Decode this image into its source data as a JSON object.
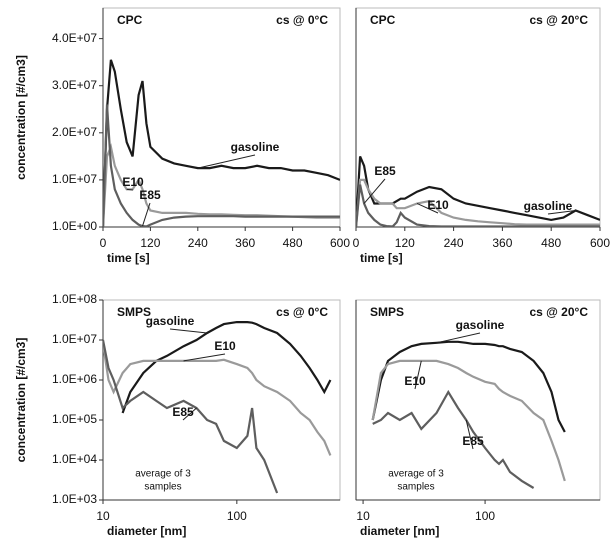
{
  "chart_data": [
    {
      "type": "line",
      "title": "CPC",
      "subtitle": "cs @ 0°C",
      "x_label": "time [s]",
      "y_label": "concentration [#/cm3]",
      "x": [
        0,
        10,
        20,
        30,
        45,
        60,
        75,
        90,
        100,
        110,
        120,
        150,
        180,
        210,
        240,
        270,
        300,
        330,
        360,
        390,
        420,
        450,
        480,
        510,
        540,
        570,
        600
      ],
      "xlim": [
        0,
        600
      ],
      "xticks": [
        0,
        120,
        240,
        360,
        480,
        600
      ],
      "ylim": [
        0,
        46500000
      ],
      "yticks": [
        {
          "value": 1,
          "label": "1.0E+00"
        },
        {
          "value": 10000000,
          "label": "1.0E+07"
        },
        {
          "value": 20000000,
          "label": "2.0E+07"
        },
        {
          "value": 30000000,
          "label": "3.0E+07"
        },
        {
          "value": 40000000,
          "label": "4.0E+07"
        }
      ],
      "series": [
        {
          "name": "gasoline",
          "color": "#1a1a1a",
          "values": [
            0,
            25000000,
            35500000,
            33000000,
            25000000,
            18000000,
            15000000,
            28000000,
            31000000,
            22000000,
            17000000,
            14500000,
            13500000,
            13000000,
            12500000,
            12500000,
            13000000,
            12500000,
            12500000,
            13000000,
            12500000,
            12500000,
            12000000,
            12000000,
            11500000,
            11000000,
            10000000
          ]
        },
        {
          "name": "E10",
          "color": "#9a9a9a",
          "values": [
            0,
            15000000,
            17000000,
            13000000,
            10000000,
            8000000,
            8000000,
            10000000,
            8000000,
            5000000,
            3500000,
            3000000,
            3000000,
            3000000,
            2800000,
            2700000,
            2700000,
            2600000,
            2500000,
            2500000,
            2400000,
            2300000,
            2200000,
            2100000,
            2000000,
            2000000,
            2000000
          ]
        },
        {
          "name": "E85",
          "color": "#5e5e5e",
          "values": [
            0,
            26000000,
            13000000,
            8000000,
            5000000,
            3000000,
            1500000,
            500000,
            200000,
            100000,
            500000,
            1500000,
            2000000,
            2200000,
            2300000,
            2300000,
            2300000,
            2300000,
            2200000,
            2200000,
            2200000,
            2200000,
            2200000,
            2200000,
            2200000,
            2200000,
            2200000
          ]
        }
      ]
    },
    {
      "type": "line",
      "title": "CPC",
      "subtitle": "cs @ 20°C",
      "x_label": "time [s]",
      "x": [
        0,
        10,
        20,
        30,
        45,
        60,
        75,
        90,
        100,
        110,
        120,
        150,
        180,
        210,
        240,
        270,
        300,
        330,
        360,
        390,
        420,
        450,
        480,
        510,
        540,
        570,
        600
      ],
      "xlim": [
        0,
        600
      ],
      "xticks": [
        0,
        120,
        240,
        360,
        480,
        600
      ],
      "ylim": [
        0,
        46500000
      ],
      "series": [
        {
          "name": "gasoline",
          "color": "#1a1a1a",
          "values": [
            0,
            15000000,
            13000000,
            8000000,
            5000000,
            5000000,
            5000000,
            5000000,
            5500000,
            6000000,
            6000000,
            7500000,
            8500000,
            8000000,
            6000000,
            5000000,
            4500000,
            4000000,
            3500000,
            3000000,
            2500000,
            2000000,
            1500000,
            2000000,
            3500000,
            2500000,
            1500000
          ]
        },
        {
          "name": "E10",
          "color": "#9a9a9a",
          "values": [
            0,
            10000000,
            10000000,
            8000000,
            6000000,
            5000000,
            5000000,
            5000000,
            4000000,
            4000000,
            4000000,
            5000000,
            5500000,
            3000000,
            2000000,
            1500000,
            1200000,
            1000000,
            800000,
            600000,
            500000,
            500000,
            500000,
            500000,
            500000,
            500000,
            500000
          ]
        },
        {
          "name": "E85",
          "color": "#5e5e5e",
          "values": [
            0,
            9000000,
            5000000,
            3000000,
            1500000,
            500000,
            200000,
            100000,
            1000000,
            3000000,
            2000000,
            500000,
            200000,
            100000,
            100000,
            100000,
            100000,
            100000,
            100000,
            100000,
            100000,
            100000,
            100000,
            100000,
            100000,
            100000,
            100000
          ]
        }
      ]
    },
    {
      "type": "line",
      "title": "SMPS",
      "subtitle": "cs @ 0°C",
      "x_label": "diameter [nm]",
      "y_label": "concentration [#/cm3]",
      "annotation": [
        "average of 3",
        "samples"
      ],
      "log_x": true,
      "log_y": true,
      "x": [
        10,
        11,
        12,
        14,
        16,
        20,
        25,
        30,
        40,
        50,
        60,
        70,
        80,
        100,
        120,
        130,
        140,
        160,
        200,
        250,
        300,
        350,
        400,
        450,
        500
      ],
      "xlim": [
        10,
        590
      ],
      "xticks": [
        10,
        100
      ],
      "ylim": [
        1000,
        100000000
      ],
      "yticks": [
        {
          "value": 1000,
          "label": "1.0E+03"
        },
        {
          "value": 10000,
          "label": "1.0E+04"
        },
        {
          "value": 100000,
          "label": "1.0E+05"
        },
        {
          "value": 1000000,
          "label": "1.0E+06"
        },
        {
          "value": 10000000,
          "label": "1.0E+07"
        },
        {
          "value": 100000000,
          "label": "1.0E+08"
        }
      ],
      "series": [
        {
          "name": "gasoline",
          "color": "#1a1a1a",
          "values": [
            null,
            null,
            null,
            150000,
            500000,
            1500000,
            3000000,
            4000000,
            7000000,
            10000000,
            15000000,
            20000000,
            25000000,
            28000000,
            28000000,
            27000000,
            25000000,
            20000000,
            15000000,
            8000000,
            4000000,
            2000000,
            1000000,
            500000,
            1000000
          ]
        },
        {
          "name": "E10",
          "color": "#9a9a9a",
          "values": [
            8000000,
            1000000,
            500000,
            1500000,
            2500000,
            3000000,
            3000000,
            3000000,
            3000000,
            3000000,
            3000000,
            3000000,
            3200000,
            2500000,
            2000000,
            1500000,
            1000000,
            700000,
            500000,
            300000,
            150000,
            100000,
            50000,
            30000,
            13000
          ]
        },
        {
          "name": "E85",
          "color": "#5e5e5e",
          "values": [
            10000000,
            2000000,
            1000000,
            200000,
            300000,
            500000,
            300000,
            200000,
            300000,
            200000,
            100000,
            80000,
            30000,
            20000,
            40000,
            200000,
            20000,
            10000,
            1500,
            null,
            null,
            null,
            null,
            null,
            null
          ]
        }
      ]
    },
    {
      "type": "line",
      "title": "SMPS",
      "subtitle": "cs @ 20°C",
      "x_label": "diameter [nm]",
      "annotation": [
        "average of 3",
        "samples"
      ],
      "log_x": true,
      "log_y": true,
      "x": [
        10,
        11,
        12,
        14,
        16,
        20,
        25,
        30,
        40,
        50,
        60,
        70,
        80,
        100,
        120,
        130,
        140,
        160,
        200,
        250,
        300,
        350,
        400,
        450,
        500
      ],
      "xlim": [
        8.75,
        875
      ],
      "xticks": [
        10,
        100
      ],
      "ylim": [
        1000,
        100000000
      ],
      "series": [
        {
          "name": "gasoline",
          "color": "#1a1a1a",
          "values": [
            null,
            null,
            100000,
            1000000,
            3000000,
            5000000,
            7000000,
            8000000,
            8500000,
            9000000,
            9000000,
            8500000,
            8000000,
            8000000,
            7500000,
            7000000,
            7000000,
            6000000,
            5000000,
            3000000,
            1500000,
            500000,
            100000,
            50000,
            null
          ]
        },
        {
          "name": "E10",
          "color": "#9a9a9a",
          "values": [
            null,
            null,
            100000,
            1500000,
            2500000,
            3000000,
            3000000,
            3000000,
            3000000,
            2500000,
            2000000,
            1500000,
            1200000,
            900000,
            800000,
            600000,
            500000,
            400000,
            300000,
            150000,
            100000,
            30000,
            10000,
            3000,
            null
          ]
        },
        {
          "name": "E85",
          "color": "#5e5e5e",
          "values": [
            null,
            null,
            80000,
            100000,
            150000,
            100000,
            150000,
            60000,
            150000,
            500000,
            200000,
            100000,
            50000,
            20000,
            10000,
            8000,
            10000,
            5000,
            3000,
            2000,
            null,
            null,
            null,
            null,
            null
          ]
        }
      ]
    }
  ]
}
